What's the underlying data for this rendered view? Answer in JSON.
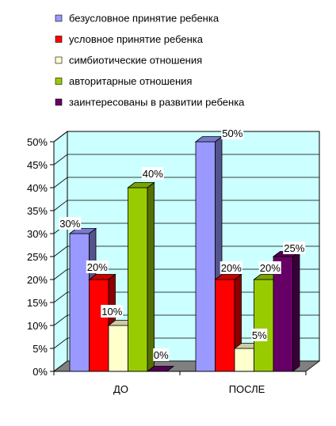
{
  "chart_data": {
    "type": "bar",
    "style": "3d-clustered-column",
    "categories": [
      "ДО",
      "ПОСЛЕ"
    ],
    "series": [
      {
        "name": "безусловное  принятие ребенка",
        "color": "#9999FF",
        "values": [
          30,
          50
        ],
        "labels": [
          "30%",
          "50%"
        ]
      },
      {
        "name": "условное принятие ребенка",
        "color": "#FF0000",
        "values": [
          20,
          20
        ],
        "labels": [
          "20%",
          "20%"
        ]
      },
      {
        "name": "симбиотические отношения",
        "color": "#FFFFCC",
        "values": [
          10,
          5
        ],
        "labels": [
          "10%",
          "5%"
        ]
      },
      {
        "name": "авторитарные  отношения",
        "color": "#99CC00",
        "values": [
          40,
          20
        ],
        "labels": [
          "40%",
          "20%"
        ]
      },
      {
        "name": "заинтересованы в развитии ребенка",
        "color": "#660066",
        "values": [
          0,
          25
        ],
        "labels": [
          "0%",
          "25%"
        ]
      }
    ],
    "y_ticks": [
      "0%",
      "5%",
      "10%",
      "15%",
      "20%",
      "25%",
      "30%",
      "35%",
      "40%",
      "45%",
      "50%"
    ],
    "ylim": [
      0,
      50
    ],
    "grid": true,
    "wall_color": "#CCFFFF",
    "floor_color": "#808080",
    "legend_position": "top",
    "title": "",
    "xlabel": "",
    "ylabel": ""
  }
}
